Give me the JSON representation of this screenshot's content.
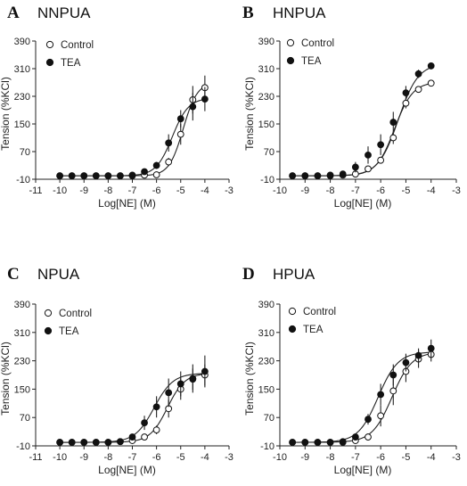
{
  "chart_data": [
    {
      "type": "scatter",
      "letter": "A",
      "title": "NNPUA",
      "xlabel": "Log[NE] (M)",
      "ylabel": "Tension (%KCl)",
      "xlim": [
        -11,
        -3
      ],
      "ylim": [
        -10,
        390
      ],
      "xticks": [
        "-11",
        "-10",
        "-9",
        "-8",
        "-7",
        "-6",
        "-5",
        "-4",
        "-3"
      ],
      "yticks": [
        "-10",
        "70",
        "150",
        "230",
        "310",
        "390"
      ],
      "legend_position": "top-left",
      "fit": "sigmoid",
      "series": [
        {
          "name": "Control",
          "marker": "open-circle",
          "x": [
            -10,
            -9.5,
            -9,
            -8.5,
            -8,
            -7.5,
            -7,
            -6.5,
            -6,
            -5.5,
            -5,
            -4.5,
            -4
          ],
          "y": [
            0,
            0,
            0,
            0,
            0,
            0,
            0,
            2,
            3,
            40,
            120,
            220,
            255
          ],
          "err": [
            3,
            3,
            3,
            3,
            3,
            3,
            3,
            4,
            5,
            12,
            30,
            40,
            35
          ],
          "fit_params": {
            "bottom": 0,
            "top": 270,
            "logEC50": -4.9,
            "hill": 1.5
          }
        },
        {
          "name": "TEA",
          "marker": "filled-circle",
          "x": [
            -10,
            -9.5,
            -9,
            -8.5,
            -8,
            -7.5,
            -7,
            -6.5,
            -6,
            -5.5,
            -5,
            -4.5,
            -4
          ],
          "y": [
            0,
            0,
            0,
            0,
            0,
            0,
            2,
            12,
            30,
            95,
            165,
            200,
            222
          ],
          "err": [
            3,
            3,
            3,
            3,
            3,
            3,
            4,
            6,
            10,
            25,
            25,
            40,
            35
          ],
          "fit_params": {
            "bottom": 0,
            "top": 225,
            "logEC50": -5.35,
            "hill": 1.3
          }
        }
      ]
    },
    {
      "type": "scatter",
      "letter": "B",
      "title": "HNPUA",
      "xlabel": "Log[NE] (M)",
      "ylabel": "Tension (%KCl)",
      "xlim": [
        -10,
        -3
      ],
      "ylim": [
        -10,
        390
      ],
      "xticks": [
        "-10",
        "-9",
        "-8",
        "-7",
        "-6",
        "-5",
        "-4",
        "-3"
      ],
      "yticks": [
        "-10",
        "70",
        "150",
        "230",
        "310",
        "390"
      ],
      "legend_position": "top-left",
      "fit": "sigmoid",
      "series": [
        {
          "name": "Control",
          "marker": "open-circle",
          "x": [
            -9.5,
            -9,
            -8.5,
            -8,
            -7.5,
            -7,
            -6.5,
            -6,
            -5.5,
            -5,
            -4.5,
            -4
          ],
          "y": [
            0,
            0,
            0,
            0,
            2,
            5,
            20,
            45,
            110,
            210,
            250,
            268
          ],
          "err": [
            3,
            3,
            3,
            3,
            4,
            6,
            8,
            10,
            18,
            15,
            8,
            6
          ],
          "fit_params": {
            "bottom": 0,
            "top": 272,
            "logEC50": -5.45,
            "hill": 1.2
          }
        },
        {
          "name": "TEA",
          "marker": "filled-circle",
          "x": [
            -9.5,
            -9,
            -8.5,
            -8,
            -7.5,
            -7,
            -6.5,
            -6,
            -5.5,
            -5,
            -4.5,
            -4
          ],
          "y": [
            0,
            0,
            0,
            2,
            5,
            25,
            60,
            90,
            155,
            240,
            295,
            318
          ],
          "err": [
            3,
            3,
            3,
            4,
            6,
            15,
            25,
            30,
            30,
            20,
            12,
            10
          ],
          "fit_params": {
            "bottom": 0,
            "top": 325,
            "logEC50": -5.3,
            "hill": 1.1
          }
        }
      ]
    },
    {
      "type": "scatter",
      "letter": "C",
      "title": "NPUA",
      "xlabel": "Log[NE] (M)",
      "ylabel": "Tension (%KCl)",
      "xlim": [
        -11,
        -3
      ],
      "ylim": [
        -10,
        390
      ],
      "xticks": [
        "-11",
        "-10",
        "-9",
        "-8",
        "-7",
        "-6",
        "-5",
        "-4",
        "-3"
      ],
      "yticks": [
        "-10",
        "70",
        "150",
        "230",
        "310",
        "390"
      ],
      "legend_position": "top-left",
      "fit": "sigmoid",
      "series": [
        {
          "name": "Control",
          "marker": "open-circle",
          "x": [
            -10,
            -9.5,
            -9,
            -8.5,
            -8,
            -7.5,
            -7,
            -6.5,
            -6,
            -5.5,
            -5,
            -4.5,
            -4
          ],
          "y": [
            0,
            0,
            0,
            0,
            0,
            2,
            5,
            15,
            35,
            95,
            150,
            178,
            190
          ],
          "err": [
            3,
            3,
            3,
            3,
            3,
            4,
            5,
            8,
            12,
            25,
            30,
            30,
            30
          ],
          "fit_params": {
            "bottom": 0,
            "top": 195,
            "logEC50": -5.55,
            "hill": 1.2
          }
        },
        {
          "name": "TEA",
          "marker": "filled-circle",
          "x": [
            -10,
            -9.5,
            -9,
            -8.5,
            -8,
            -7.5,
            -7,
            -6.5,
            -6,
            -5.5,
            -5,
            -4.5,
            -4
          ],
          "y": [
            0,
            0,
            0,
            0,
            0,
            2,
            15,
            55,
            100,
            140,
            165,
            180,
            200
          ],
          "err": [
            3,
            3,
            3,
            3,
            3,
            4,
            8,
            20,
            30,
            40,
            35,
            40,
            45
          ],
          "fit_params": {
            "bottom": 0,
            "top": 195,
            "logEC50": -6.1,
            "hill": 1.1
          }
        }
      ]
    },
    {
      "type": "scatter",
      "letter": "D",
      "title": "HPUA",
      "xlabel": "Log[NE] (M)",
      "ylabel": "Tension (%KCl)",
      "xlim": [
        -10,
        -3
      ],
      "ylim": [
        -10,
        390
      ],
      "xticks": [
        "-10",
        "-9",
        "-8",
        "-7",
        "-6",
        "-5",
        "-4",
        "-3"
      ],
      "yticks": [
        "-10",
        "70",
        "150",
        "230",
        "310",
        "390"
      ],
      "legend_position": "top-left",
      "fit": "sigmoid",
      "series": [
        {
          "name": "Control",
          "marker": "open-circle",
          "x": [
            -9.5,
            -9,
            -8.5,
            -8,
            -7.5,
            -7,
            -6.5,
            -6,
            -5.5,
            -5,
            -4.5,
            -4
          ],
          "y": [
            0,
            0,
            0,
            0,
            0,
            5,
            15,
            75,
            145,
            200,
            235,
            248
          ],
          "err": [
            3,
            3,
            3,
            3,
            3,
            5,
            10,
            30,
            40,
            30,
            25,
            20
          ],
          "fit_params": {
            "bottom": 0,
            "top": 255,
            "logEC50": -5.55,
            "hill": 1.1
          }
        },
        {
          "name": "TEA",
          "marker": "filled-circle",
          "x": [
            -9.5,
            -9,
            -8.5,
            -8,
            -7.5,
            -7,
            -6.5,
            -6,
            -5.5,
            -5,
            -4.5,
            -4
          ],
          "y": [
            0,
            0,
            0,
            0,
            2,
            15,
            65,
            135,
            190,
            225,
            245,
            265
          ],
          "err": [
            3,
            3,
            3,
            3,
            4,
            8,
            15,
            30,
            30,
            25,
            20,
            25
          ],
          "fit_params": {
            "bottom": 0,
            "top": 255,
            "logEC50": -6.1,
            "hill": 1.1
          }
        }
      ]
    }
  ]
}
